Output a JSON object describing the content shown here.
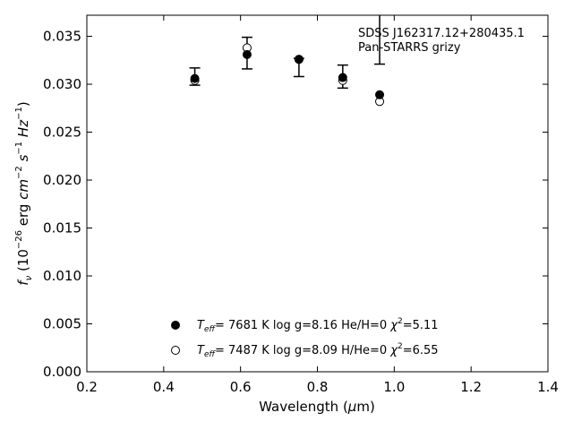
{
  "chart_data": {
    "type": "scatter",
    "xlabel": "Wavelength (μm)",
    "ylabel": "f_ν (10^-26 erg cm^-2 s^-1 Hz^-1)",
    "xlim": [
      0.2,
      1.4
    ],
    "ylim": [
      0.0,
      0.0372
    ],
    "xticks": [
      "0.2",
      "0.4",
      "0.6",
      "0.8",
      "1.0",
      "1.2",
      "1.4"
    ],
    "yticks": [
      "0.000",
      "0.005",
      "0.010",
      "0.015",
      "0.020",
      "0.025",
      "0.030",
      "0.035"
    ],
    "annotation": [
      "SDSS J162317.12+280435.1",
      "Pan-STARRS grizy"
    ],
    "grid": false,
    "legend_position": "lower-center",
    "observed": {
      "x": [
        0.481,
        0.617,
        0.752,
        0.866,
        0.962
      ],
      "y": [
        0.0308,
        0.0333,
        0.0326,
        0.0308,
        null
      ],
      "yerr_low": [
        0.0299,
        0.0316,
        0.0308,
        0.0296,
        0.0321
      ],
      "yerr_high": [
        0.0317,
        0.0349,
        0.0327,
        0.032,
        0.0372
      ]
    },
    "series": [
      {
        "marker": "filled-circle",
        "legend": "T_eff=  7681 K  log g=8.16  He/H=0  χ²=5.11",
        "x": [
          0.481,
          0.617,
          0.752,
          0.866,
          0.962
        ],
        "y": [
          0.0306,
          0.0331,
          0.0326,
          0.0307,
          0.0289
        ]
      },
      {
        "marker": "open-circle",
        "legend": "T_eff=  7487 K  log g=8.09  H/He=0  χ²=6.55",
        "x": [
          0.481,
          0.617,
          0.752,
          0.866,
          0.962
        ],
        "y": [
          0.0304,
          0.0338,
          0.0326,
          0.0304,
          0.0282
        ]
      }
    ]
  }
}
